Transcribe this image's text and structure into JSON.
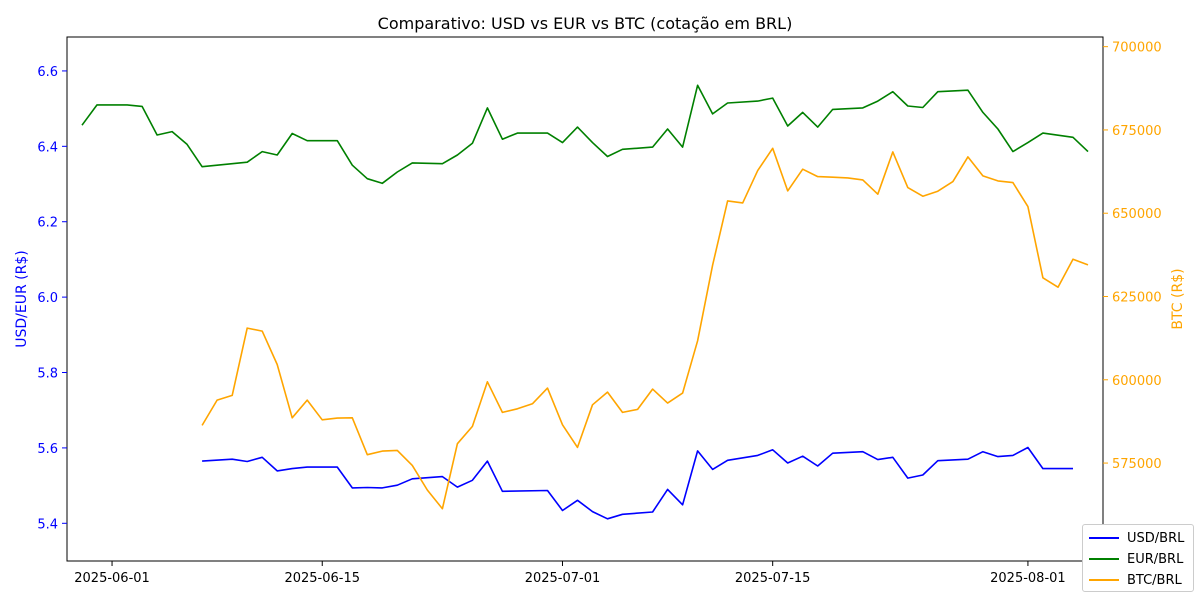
{
  "chart_data": {
    "type": "line",
    "title": "Comparativo: USD vs EUR vs BTC (cotação em BRL)",
    "ylabel": "USD/EUR (R$)",
    "y2label": "BTC (R$)",
    "ylim": [
      5.3,
      6.69
    ],
    "y2lim": [
      545600,
      702900
    ],
    "xlim": [
      "2025-05-29",
      "2025-08-06"
    ],
    "x_ticks": [
      "2025-06-01",
      "2025-06-15",
      "2025-07-01",
      "2025-07-15",
      "2025-08-01"
    ],
    "y_ticks": [
      "5.4",
      "5.6",
      "5.8",
      "6.0",
      "6.2",
      "6.4",
      "6.6"
    ],
    "y2_ticks": [
      "550000",
      "575000",
      "600000",
      "625000",
      "650000",
      "675000",
      "700000"
    ],
    "legend_position": "bottom-right",
    "grid": false,
    "series": [
      {
        "name": "USD/BRL",
        "axis": "left",
        "color": "#0000ff",
        "points": [
          [
            "2025-06-07",
            5.565
          ],
          [
            "2025-06-09",
            5.57
          ],
          [
            "2025-06-10",
            5.564
          ],
          [
            "2025-06-11",
            5.575
          ],
          [
            "2025-06-12",
            5.539
          ],
          [
            "2025-06-13",
            5.545
          ],
          [
            "2025-06-14",
            5.549
          ],
          [
            "2025-06-15",
            5.549
          ],
          [
            "2025-06-16",
            5.549
          ],
          [
            "2025-06-17",
            5.494
          ],
          [
            "2025-06-18",
            5.495
          ],
          [
            "2025-06-19",
            5.494
          ],
          [
            "2025-06-20",
            5.501
          ],
          [
            "2025-06-21",
            5.518
          ],
          [
            "2025-06-23",
            5.524
          ],
          [
            "2025-06-24",
            5.496
          ],
          [
            "2025-06-25",
            5.514
          ],
          [
            "2025-06-26",
            5.565
          ],
          [
            "2025-06-27",
            5.485
          ],
          [
            "2025-06-30",
            5.487
          ],
          [
            "2025-07-01",
            5.434
          ],
          [
            "2025-07-02",
            5.461
          ],
          [
            "2025-07-03",
            5.431
          ],
          [
            "2025-07-04",
            5.412
          ],
          [
            "2025-07-05",
            5.424
          ],
          [
            "2025-07-07",
            5.43
          ],
          [
            "2025-07-08",
            5.49
          ],
          [
            "2025-07-09",
            5.449
          ],
          [
            "2025-07-10",
            5.592
          ],
          [
            "2025-07-11",
            5.543
          ],
          [
            "2025-07-12",
            5.567
          ],
          [
            "2025-07-14",
            5.58
          ],
          [
            "2025-07-15",
            5.595
          ],
          [
            "2025-07-16",
            5.56
          ],
          [
            "2025-07-17",
            5.578
          ],
          [
            "2025-07-18",
            5.552
          ],
          [
            "2025-07-19",
            5.586
          ],
          [
            "2025-07-21",
            5.59
          ],
          [
            "2025-07-22",
            5.569
          ],
          [
            "2025-07-23",
            5.575
          ],
          [
            "2025-07-24",
            5.52
          ],
          [
            "2025-07-25",
            5.528
          ],
          [
            "2025-07-26",
            5.566
          ],
          [
            "2025-07-28",
            5.57
          ],
          [
            "2025-07-29",
            5.59
          ],
          [
            "2025-07-30",
            5.577
          ],
          [
            "2025-07-31",
            5.58
          ],
          [
            "2025-08-01",
            5.601
          ],
          [
            "2025-08-02",
            5.545
          ],
          [
            "2025-08-04",
            5.545
          ]
        ]
      },
      {
        "name": "EUR/BRL",
        "axis": "left",
        "color": "#008000",
        "points": [
          [
            "2025-05-30",
            6.456
          ],
          [
            "2025-05-31",
            6.51
          ],
          [
            "2025-06-02",
            6.51
          ],
          [
            "2025-06-03",
            6.506
          ],
          [
            "2025-06-04",
            6.43
          ],
          [
            "2025-06-05",
            6.439
          ],
          [
            "2025-06-06",
            6.405
          ],
          [
            "2025-06-07",
            6.346
          ],
          [
            "2025-06-10",
            6.358
          ],
          [
            "2025-06-11",
            6.386
          ],
          [
            "2025-06-12",
            6.377
          ],
          [
            "2025-06-13",
            6.434
          ],
          [
            "2025-06-14",
            6.415
          ],
          [
            "2025-06-16",
            6.415
          ],
          [
            "2025-06-17",
            6.35
          ],
          [
            "2025-06-18",
            6.314
          ],
          [
            "2025-06-19",
            6.302
          ],
          [
            "2025-06-20",
            6.332
          ],
          [
            "2025-06-21",
            6.356
          ],
          [
            "2025-06-23",
            6.354
          ],
          [
            "2025-06-24",
            6.377
          ],
          [
            "2025-06-25",
            6.408
          ],
          [
            "2025-06-26",
            6.502
          ],
          [
            "2025-06-27",
            6.419
          ],
          [
            "2025-06-28",
            6.435
          ],
          [
            "2025-06-30",
            6.435
          ],
          [
            "2025-07-01",
            6.41
          ],
          [
            "2025-07-02",
            6.451
          ],
          [
            "2025-07-03",
            6.41
          ],
          [
            "2025-07-04",
            6.373
          ],
          [
            "2025-07-05",
            6.392
          ],
          [
            "2025-07-07",
            6.398
          ],
          [
            "2025-07-08",
            6.446
          ],
          [
            "2025-07-09",
            6.398
          ],
          [
            "2025-07-10",
            6.562
          ],
          [
            "2025-07-11",
            6.486
          ],
          [
            "2025-07-12",
            6.515
          ],
          [
            "2025-07-14",
            6.52
          ],
          [
            "2025-07-15",
            6.528
          ],
          [
            "2025-07-16",
            6.454
          ],
          [
            "2025-07-17",
            6.49
          ],
          [
            "2025-07-18",
            6.451
          ],
          [
            "2025-07-19",
            6.498
          ],
          [
            "2025-07-21",
            6.502
          ],
          [
            "2025-07-22",
            6.52
          ],
          [
            "2025-07-23",
            6.545
          ],
          [
            "2025-07-24",
            6.507
          ],
          [
            "2025-07-25",
            6.503
          ],
          [
            "2025-07-26",
            6.545
          ],
          [
            "2025-07-28",
            6.549
          ],
          [
            "2025-07-29",
            6.49
          ],
          [
            "2025-07-30",
            6.446
          ],
          [
            "2025-07-31",
            6.386
          ],
          [
            "2025-08-01",
            6.41
          ],
          [
            "2025-08-02",
            6.435
          ],
          [
            "2025-08-04",
            6.424
          ],
          [
            "2025-08-05",
            6.386
          ]
        ]
      },
      {
        "name": "BTC/BRL",
        "axis": "right",
        "color": "#ffa500",
        "points": [
          [
            "2025-06-07",
            586300
          ],
          [
            "2025-06-08",
            593900
          ],
          [
            "2025-06-09",
            595300
          ],
          [
            "2025-06-10",
            615500
          ],
          [
            "2025-06-11",
            614600
          ],
          [
            "2025-06-12",
            604600
          ],
          [
            "2025-06-13",
            588600
          ],
          [
            "2025-06-14",
            593900
          ],
          [
            "2025-06-15",
            588000
          ],
          [
            "2025-06-16",
            588500
          ],
          [
            "2025-06-17",
            588600
          ],
          [
            "2025-06-18",
            577500
          ],
          [
            "2025-06-19",
            578600
          ],
          [
            "2025-06-20",
            578800
          ],
          [
            "2025-06-21",
            574300
          ],
          [
            "2025-06-22",
            566900
          ],
          [
            "2025-06-23",
            561300
          ],
          [
            "2025-06-24",
            580800
          ],
          [
            "2025-06-25",
            586000
          ],
          [
            "2025-06-26",
            599400
          ],
          [
            "2025-06-27",
            590200
          ],
          [
            "2025-06-28",
            591300
          ],
          [
            "2025-06-29",
            592800
          ],
          [
            "2025-06-30",
            597500
          ],
          [
            "2025-07-01",
            586500
          ],
          [
            "2025-07-02",
            579700
          ],
          [
            "2025-07-03",
            592500
          ],
          [
            "2025-07-04",
            596300
          ],
          [
            "2025-07-05",
            590200
          ],
          [
            "2025-07-06",
            591100
          ],
          [
            "2025-07-07",
            597200
          ],
          [
            "2025-07-08",
            593000
          ],
          [
            "2025-07-09",
            596000
          ],
          [
            "2025-07-10",
            611700
          ],
          [
            "2025-07-11",
            634400
          ],
          [
            "2025-07-12",
            653700
          ],
          [
            "2025-07-13",
            653100
          ],
          [
            "2025-07-14",
            662800
          ],
          [
            "2025-07-15",
            669500
          ],
          [
            "2025-07-16",
            656700
          ],
          [
            "2025-07-17",
            663200
          ],
          [
            "2025-07-18",
            661000
          ],
          [
            "2025-07-19",
            660800
          ],
          [
            "2025-07-20",
            660600
          ],
          [
            "2025-07-21",
            660000
          ],
          [
            "2025-07-22",
            655700
          ],
          [
            "2025-07-23",
            668400
          ],
          [
            "2025-07-24",
            657700
          ],
          [
            "2025-07-25",
            655100
          ],
          [
            "2025-07-26",
            656600
          ],
          [
            "2025-07-27",
            659500
          ],
          [
            "2025-07-28",
            666900
          ],
          [
            "2025-07-29",
            661200
          ],
          [
            "2025-07-30",
            659700
          ],
          [
            "2025-07-31",
            659200
          ],
          [
            "2025-08-01",
            652000
          ],
          [
            "2025-08-02",
            630600
          ],
          [
            "2025-08-03",
            627800
          ],
          [
            "2025-08-04",
            636200
          ],
          [
            "2025-08-05",
            634500
          ]
        ]
      }
    ]
  }
}
